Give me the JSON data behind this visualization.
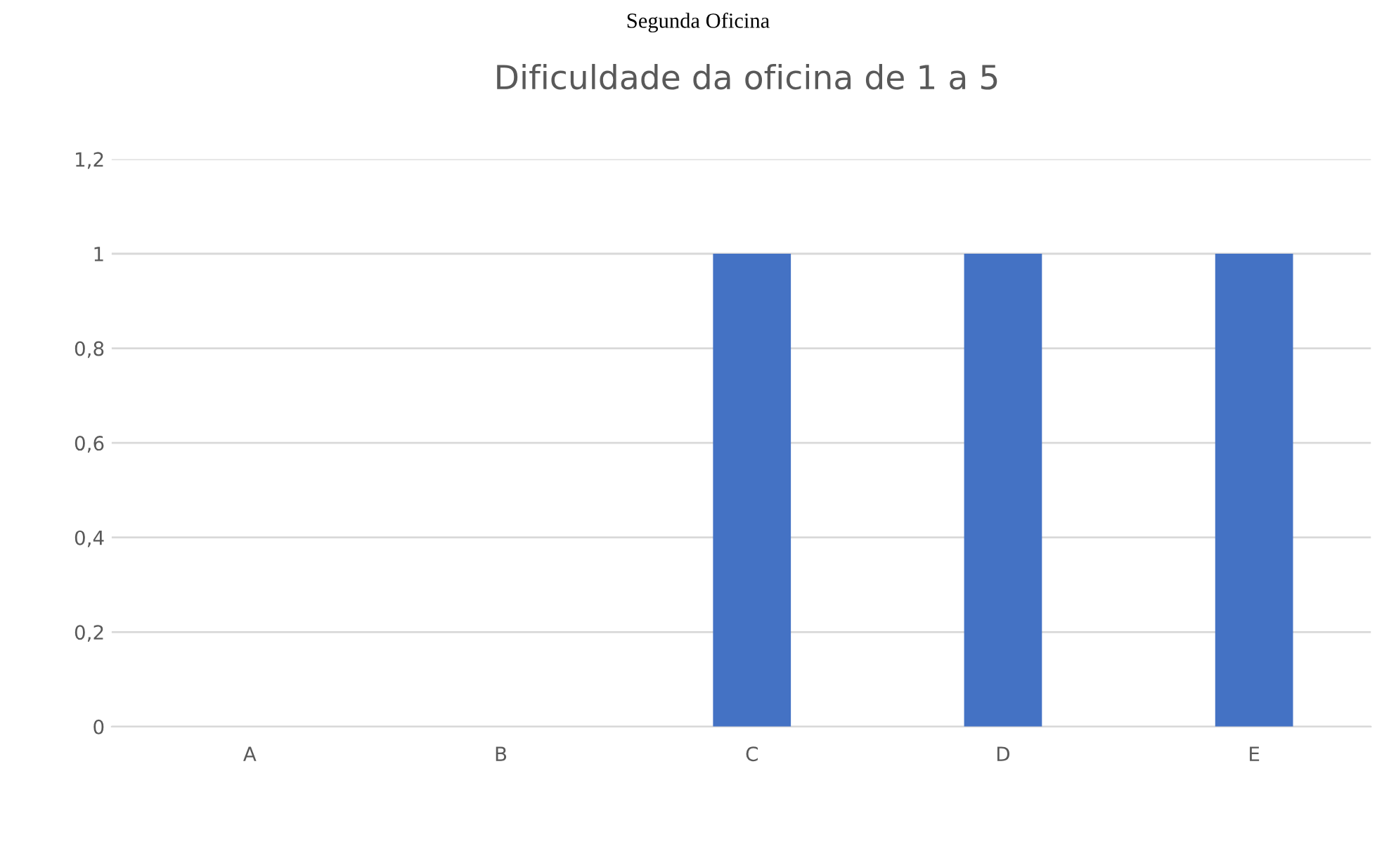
{
  "chart_data": {
    "type": "bar",
    "title": "Dificuldade da oficina de 1 a 5",
    "annotations": [
      "Segunda Oficina"
    ],
    "categories": [
      "A",
      "B",
      "C",
      "D",
      "E"
    ],
    "values": [
      0,
      0,
      1,
      1,
      1
    ],
    "color": "#4472c4",
    "ylim": [
      0,
      1.2
    ],
    "yticks": [
      0,
      {
        "value": 0.2,
        "label": "0,2"
      },
      {
        "value": 0.4,
        "label": "0,4"
      },
      {
        "value": 0.6,
        "label": "0,6"
      },
      {
        "value": 0.8,
        "label": "0,8"
      },
      1,
      {
        "value": 1.2,
        "label": "1,2"
      }
    ],
    "grid": "y",
    "legend": false
  }
}
